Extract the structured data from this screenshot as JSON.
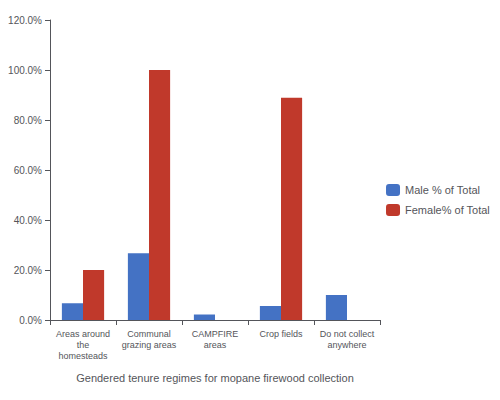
{
  "chart_data": {
    "type": "bar",
    "xlabel": "Gendered tenure regimes for mopane firewood collection",
    "categories": [
      "Areas around\nthe\nhomesteads",
      "Communal\ngrazing areas",
      "CAMPFIRE\nareas",
      "Crop fields",
      "Do not collect\nanywhere"
    ],
    "series": [
      {
        "name": "Male % of Total",
        "color": "#4472C4",
        "values": [
          6.7,
          26.7,
          2.2,
          5.6,
          10.0
        ]
      },
      {
        "name": "Female% of Total",
        "color": "#C0392B",
        "values": [
          20.0,
          100.0,
          0.0,
          88.9,
          0.0
        ]
      }
    ],
    "ylim": [
      0,
      120
    ],
    "yticks": [
      {
        "value": 0,
        "label": "0.0%"
      },
      {
        "value": 20,
        "label": "20.0%"
      },
      {
        "value": 40,
        "label": "40.0%"
      },
      {
        "value": 60,
        "label": "60.0%"
      },
      {
        "value": 80,
        "label": "80.0%"
      },
      {
        "value": 100,
        "label": "100.0%"
      },
      {
        "value": 120,
        "label": "120.0%"
      }
    ],
    "grid": false,
    "legend": "right"
  }
}
